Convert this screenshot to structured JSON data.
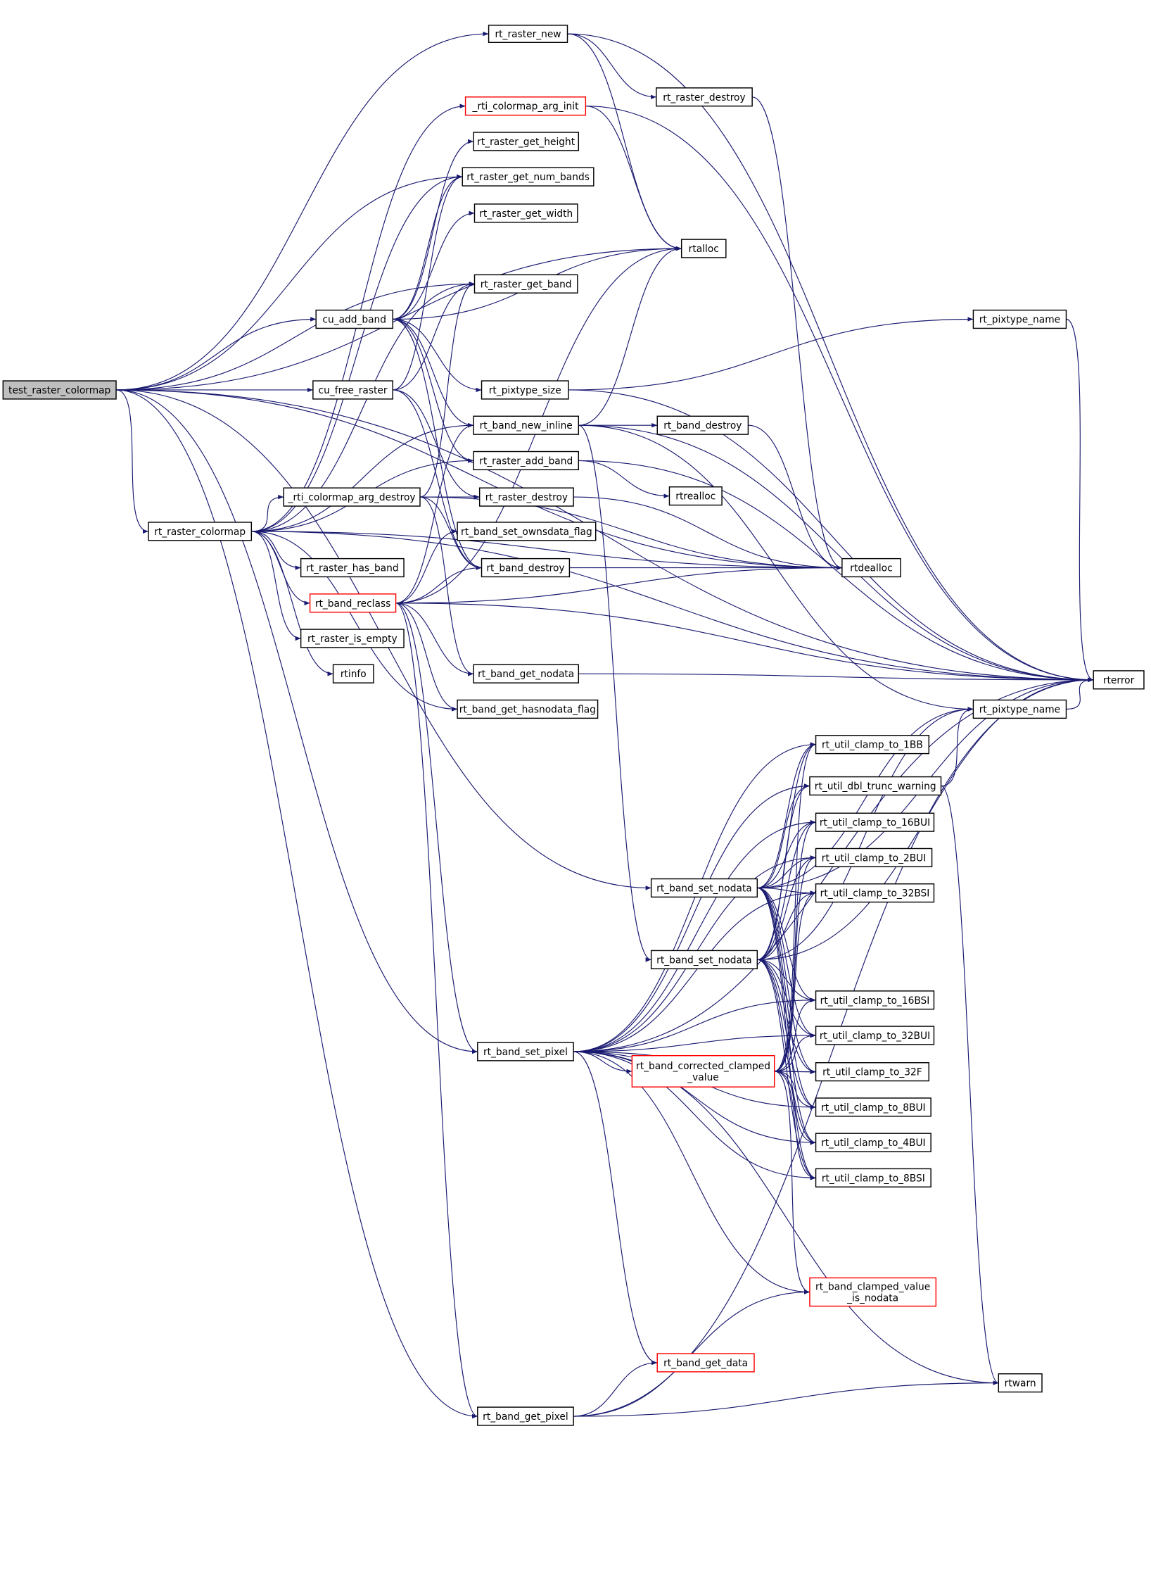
{
  "colors": {
    "edge": "#191970",
    "node_border": "#000000",
    "highlight_border": "#ff0000",
    "root_fill": "#bfbfbf"
  },
  "nodes": [
    {
      "id": "test_raster_colormap",
      "label": [
        "test_raster_colormap"
      ],
      "style": "root"
    },
    {
      "id": "rt_raster_new",
      "label": [
        "rt_raster_new"
      ]
    },
    {
      "id": "_rti_colormap_arg_init",
      "label": [
        "_rti_colormap_arg_init"
      ],
      "style": "red"
    },
    {
      "id": "rt_raster_get_height",
      "label": [
        "rt_raster_get_height"
      ]
    },
    {
      "id": "rt_raster_get_num_bands",
      "label": [
        "rt_raster_get_num_bands"
      ]
    },
    {
      "id": "rt_raster_get_width",
      "label": [
        "rt_raster_get_width"
      ]
    },
    {
      "id": "rt_raster_get_band",
      "label": [
        "rt_raster_get_band"
      ]
    },
    {
      "id": "rt_raster_destroy_a",
      "label": [
        "rt_raster_destroy"
      ]
    },
    {
      "id": "rtalloc",
      "label": [
        "rtalloc"
      ]
    },
    {
      "id": "rt_pixtype_name_a",
      "label": [
        "rt_pixtype_name"
      ]
    },
    {
      "id": "cu_add_band",
      "label": [
        "cu_add_band"
      ]
    },
    {
      "id": "cu_free_raster",
      "label": [
        "cu_free_raster"
      ]
    },
    {
      "id": "rt_pixtype_size",
      "label": [
        "rt_pixtype_size"
      ]
    },
    {
      "id": "rt_band_new_inline",
      "label": [
        "rt_band_new_inline"
      ]
    },
    {
      "id": "rt_band_destroy_a",
      "label": [
        "rt_band_destroy"
      ]
    },
    {
      "id": "rt_raster_add_band",
      "label": [
        "rt_raster_add_band"
      ]
    },
    {
      "id": "rtrealloc",
      "label": [
        "rtrealloc"
      ]
    },
    {
      "id": "_rti_colormap_arg_destroy",
      "label": [
        "_rti_colormap_arg_destroy"
      ]
    },
    {
      "id": "rt_raster_destroy_b",
      "label": [
        "rt_raster_destroy"
      ]
    },
    {
      "id": "rt_raster_colormap",
      "label": [
        "rt_raster_colormap"
      ]
    },
    {
      "id": "rt_band_set_ownsdata_flag",
      "label": [
        "rt_band_set_ownsdata_flag"
      ]
    },
    {
      "id": "rt_band_destroy_b",
      "label": [
        "rt_band_destroy"
      ]
    },
    {
      "id": "rtdealloc",
      "label": [
        "rtdealloc"
      ]
    },
    {
      "id": "rt_raster_has_band",
      "label": [
        "rt_raster_has_band"
      ]
    },
    {
      "id": "rt_band_reclass",
      "label": [
        "rt_band_reclass"
      ],
      "style": "red"
    },
    {
      "id": "rt_raster_is_empty",
      "label": [
        "rt_raster_is_empty"
      ]
    },
    {
      "id": "rtinfo",
      "label": [
        "rtinfo"
      ]
    },
    {
      "id": "rt_band_get_nodata",
      "label": [
        "rt_band_get_nodata"
      ]
    },
    {
      "id": "rt_band_get_hasnodata_flag",
      "label": [
        "rt_band_get_hasnodata_flag"
      ]
    },
    {
      "id": "rterror",
      "label": [
        "rterror"
      ]
    },
    {
      "id": "rt_pixtype_name_b",
      "label": [
        "rt_pixtype_name"
      ]
    },
    {
      "id": "rt_util_clamp_to_1BB",
      "label": [
        "rt_util_clamp_to_1BB"
      ]
    },
    {
      "id": "rt_util_dbl_trunc_warning",
      "label": [
        "rt_util_dbl_trunc_warning"
      ]
    },
    {
      "id": "rt_util_clamp_to_16BUI",
      "label": [
        "rt_util_clamp_to_16BUI"
      ]
    },
    {
      "id": "rt_util_clamp_to_2BUI",
      "label": [
        "rt_util_clamp_to_2BUI"
      ]
    },
    {
      "id": "rt_band_set_nodata_a",
      "label": [
        "rt_band_set_nodata"
      ]
    },
    {
      "id": "rt_util_clamp_to_32BSI",
      "label": [
        "rt_util_clamp_to_32BSI"
      ]
    },
    {
      "id": "rt_band_set_nodata_b",
      "label": [
        "rt_band_set_nodata"
      ]
    },
    {
      "id": "rt_util_clamp_to_16BSI",
      "label": [
        "rt_util_clamp_to_16BSI"
      ]
    },
    {
      "id": "rt_util_clamp_to_32BUI",
      "label": [
        "rt_util_clamp_to_32BUI"
      ]
    },
    {
      "id": "rt_band_set_pixel",
      "label": [
        "rt_band_set_pixel"
      ]
    },
    {
      "id": "rt_band_corrected_clamped_value",
      "label": [
        "rt_band_corrected_clamped",
        "_value"
      ],
      "style": "red"
    },
    {
      "id": "rt_util_clamp_to_32F",
      "label": [
        "rt_util_clamp_to_32F"
      ]
    },
    {
      "id": "rt_util_clamp_to_8BUI",
      "label": [
        "rt_util_clamp_to_8BUI"
      ]
    },
    {
      "id": "rt_util_clamp_to_4BUI",
      "label": [
        "rt_util_clamp_to_4BUI"
      ]
    },
    {
      "id": "rt_util_clamp_to_8BSI",
      "label": [
        "rt_util_clamp_to_8BSI"
      ]
    },
    {
      "id": "rt_band_clamped_value_is_nodata",
      "label": [
        "rt_band_clamped_value",
        "_is_nodata"
      ],
      "style": "red"
    },
    {
      "id": "rt_band_get_data",
      "label": [
        "rt_band_get_data"
      ],
      "style": "red"
    },
    {
      "id": "rtwarn",
      "label": [
        "rtwarn"
      ]
    },
    {
      "id": "rt_band_get_pixel",
      "label": [
        "rt_band_get_pixel"
      ]
    }
  ],
  "edges": [
    [
      "test_raster_colormap",
      "rt_raster_new"
    ],
    [
      "test_raster_colormap",
      "rtalloc"
    ],
    [
      "test_raster_colormap",
      "rt_raster_get_num_bands"
    ],
    [
      "test_raster_colormap",
      "rt_raster_get_band"
    ],
    [
      "test_raster_colormap",
      "cu_add_band"
    ],
    [
      "test_raster_colormap",
      "cu_free_raster"
    ],
    [
      "test_raster_colormap",
      "rt_raster_colormap"
    ],
    [
      "test_raster_colormap",
      "rtdealloc"
    ],
    [
      "test_raster_colormap",
      "rt_band_set_nodata_a"
    ],
    [
      "test_raster_colormap",
      "rt_band_set_pixel"
    ],
    [
      "test_raster_colormap",
      "rt_band_get_pixel"
    ],
    [
      "test_raster_colormap",
      "rterror"
    ],
    [
      "rt_raster_new",
      "rtalloc"
    ],
    [
      "rt_raster_new",
      "rt_raster_destroy_a"
    ],
    [
      "rt_raster_new",
      "rterror"
    ],
    [
      "rt_raster_destroy_a",
      "rtdealloc"
    ],
    [
      "_rti_colormap_arg_init",
      "rtalloc"
    ],
    [
      "_rti_colormap_arg_init",
      "rterror"
    ],
    [
      "cu_add_band",
      "rt_raster_get_height"
    ],
    [
      "cu_add_band",
      "rt_raster_get_num_bands"
    ],
    [
      "cu_add_band",
      "rt_raster_get_width"
    ],
    [
      "cu_add_band",
      "rt_pixtype_size"
    ],
    [
      "cu_add_band",
      "rt_band_new_inline"
    ],
    [
      "cu_add_band",
      "rt_raster_add_band"
    ],
    [
      "cu_add_band",
      "rt_band_destroy_b"
    ],
    [
      "cu_add_band",
      "rtalloc"
    ],
    [
      "cu_free_raster",
      "rt_raster_get_num_bands"
    ],
    [
      "cu_free_raster",
      "rt_raster_get_band"
    ],
    [
      "cu_free_raster",
      "rt_band_destroy_b"
    ],
    [
      "cu_free_raster",
      "rt_raster_destroy_b"
    ],
    [
      "rt_pixtype_size",
      "rterror"
    ],
    [
      "rt_pixtype_size",
      "rt_pixtype_name_a"
    ],
    [
      "rt_pixtype_name_a",
      "rterror"
    ],
    [
      "rt_band_new_inline",
      "rtalloc"
    ],
    [
      "rt_band_new_inline",
      "rt_band_destroy_a"
    ],
    [
      "rt_band_new_inline",
      "rterror"
    ],
    [
      "rt_band_new_inline",
      "rt_pixtype_name_b"
    ],
    [
      "rt_band_new_inline",
      "rt_band_set_nodata_b"
    ],
    [
      "rt_band_destroy_a",
      "rtdealloc"
    ],
    [
      "rt_raster_add_band",
      "rtrealloc"
    ],
    [
      "rt_raster_add_band",
      "rterror"
    ],
    [
      "rt_raster_destroy_b",
      "rtdealloc"
    ],
    [
      "rt_raster_colormap",
      "_rti_colormap_arg_init"
    ],
    [
      "rt_raster_colormap",
      "rt_raster_get_num_bands"
    ],
    [
      "rt_raster_colormap",
      "rt_raster_get_band"
    ],
    [
      "rt_raster_colormap",
      "rt_raster_add_band"
    ],
    [
      "rt_raster_colormap",
      "_rti_colormap_arg_destroy"
    ],
    [
      "rt_raster_colormap",
      "rt_raster_has_band"
    ],
    [
      "rt_raster_colormap",
      "rt_band_reclass"
    ],
    [
      "rt_raster_colormap",
      "rt_raster_is_empty"
    ],
    [
      "rt_raster_colormap",
      "rtinfo"
    ],
    [
      "rt_raster_colormap",
      "rt_band_get_hasnodata_flag"
    ],
    [
      "rt_raster_colormap",
      "rtdealloc"
    ],
    [
      "rt_raster_colormap",
      "rt_band_new_inline"
    ],
    [
      "rt_raster_colormap",
      "rterror"
    ],
    [
      "_rti_colormap_arg_destroy",
      "rt_raster_destroy_b"
    ],
    [
      "_rti_colormap_arg_destroy",
      "rtdealloc"
    ],
    [
      "_rti_colormap_arg_destroy",
      "rt_band_get_nodata"
    ],
    [
      "_rti_colormap_arg_destroy",
      "rt_raster_get_band"
    ],
    [
      "_rti_colormap_arg_destroy",
      "rt_band_destroy_b"
    ],
    [
      "rt_band_reclass",
      "rt_band_new_inline"
    ],
    [
      "rt_band_reclass",
      "rt_band_set_ownsdata_flag"
    ],
    [
      "rt_band_reclass",
      "rt_band_destroy_b"
    ],
    [
      "rt_band_reclass",
      "rtdealloc"
    ],
    [
      "rt_band_reclass",
      "rt_band_get_nodata"
    ],
    [
      "rt_band_reclass",
      "rt_band_get_hasnodata_flag"
    ],
    [
      "rt_band_reclass",
      "rt_band_set_pixel"
    ],
    [
      "rt_band_reclass",
      "rt_band_get_pixel"
    ],
    [
      "rt_band_reclass",
      "rterror"
    ],
    [
      "rt_band_reclass",
      "rtalloc"
    ],
    [
      "rt_band_destroy_b",
      "rtdealloc"
    ],
    [
      "rt_band_get_nodata",
      "rterror"
    ],
    [
      "rt_pixtype_name_b",
      "rterror"
    ],
    [
      "rt_util_dbl_trunc_warning",
      "rt_pixtype_name_b"
    ],
    [
      "rt_util_dbl_trunc_warning",
      "rtwarn"
    ],
    [
      "rt_band_set_nodata_a",
      "rt_util_clamp_to_1BB"
    ],
    [
      "rt_band_set_nodata_a",
      "rt_util_dbl_trunc_warning"
    ],
    [
      "rt_band_set_nodata_a",
      "rt_util_clamp_to_16BUI"
    ],
    [
      "rt_band_set_nodata_a",
      "rt_util_clamp_to_2BUI"
    ],
    [
      "rt_band_set_nodata_a",
      "rt_util_clamp_to_32BSI"
    ],
    [
      "rt_band_set_nodata_a",
      "rt_util_clamp_to_16BSI"
    ],
    [
      "rt_band_set_nodata_a",
      "rt_util_clamp_to_32BUI"
    ],
    [
      "rt_band_set_nodata_a",
      "rt_util_clamp_to_32F"
    ],
    [
      "rt_band_set_nodata_a",
      "rt_util_clamp_to_8BUI"
    ],
    [
      "rt_band_set_nodata_a",
      "rt_util_clamp_to_4BUI"
    ],
    [
      "rt_band_set_nodata_a",
      "rt_util_clamp_to_8BSI"
    ],
    [
      "rt_band_set_nodata_a",
      "rterror"
    ],
    [
      "rt_band_set_nodata_a",
      "rt_pixtype_name_b"
    ],
    [
      "rt_band_set_nodata_b",
      "rt_util_clamp_to_1BB"
    ],
    [
      "rt_band_set_nodata_b",
      "rt_util_dbl_trunc_warning"
    ],
    [
      "rt_band_set_nodata_b",
      "rt_util_clamp_to_16BUI"
    ],
    [
      "rt_band_set_nodata_b",
      "rt_util_clamp_to_2BUI"
    ],
    [
      "rt_band_set_nodata_b",
      "rt_util_clamp_to_32BSI"
    ],
    [
      "rt_band_set_nodata_b",
      "rt_util_clamp_to_16BSI"
    ],
    [
      "rt_band_set_nodata_b",
      "rt_util_clamp_to_32BUI"
    ],
    [
      "rt_band_set_nodata_b",
      "rt_util_clamp_to_32F"
    ],
    [
      "rt_band_set_nodata_b",
      "rt_util_clamp_to_8BUI"
    ],
    [
      "rt_band_set_nodata_b",
      "rt_util_clamp_to_4BUI"
    ],
    [
      "rt_band_set_nodata_b",
      "rt_util_clamp_to_8BSI"
    ],
    [
      "rt_band_set_nodata_b",
      "rterror"
    ],
    [
      "rt_band_set_nodata_b",
      "rt_pixtype_name_b"
    ],
    [
      "rt_band_set_pixel",
      "rt_util_clamp_to_1BB"
    ],
    [
      "rt_band_set_pixel",
      "rt_util_dbl_trunc_warning"
    ],
    [
      "rt_band_set_pixel",
      "rt_util_clamp_to_16BUI"
    ],
    [
      "rt_band_set_pixel",
      "rt_util_clamp_to_2BUI"
    ],
    [
      "rt_band_set_pixel",
      "rt_util_clamp_to_32BSI"
    ],
    [
      "rt_band_set_pixel",
      "rt_util_clamp_to_16BSI"
    ],
    [
      "rt_band_set_pixel",
      "rt_util_clamp_to_32BUI"
    ],
    [
      "rt_band_set_pixel",
      "rt_util_clamp_to_32F"
    ],
    [
      "rt_band_set_pixel",
      "rt_util_clamp_to_8BUI"
    ],
    [
      "rt_band_set_pixel",
      "rt_util_clamp_to_4BUI"
    ],
    [
      "rt_band_set_pixel",
      "rt_util_clamp_to_8BSI"
    ],
    [
      "rt_band_set_pixel",
      "rt_band_corrected_clamped_value"
    ],
    [
      "rt_band_set_pixel",
      "rt_band_clamped_value_is_nodata"
    ],
    [
      "rt_band_set_pixel",
      "rt_band_get_data"
    ],
    [
      "rt_band_set_pixel",
      "rtwarn"
    ],
    [
      "rt_band_set_pixel",
      "rterror"
    ],
    [
      "rt_band_corrected_clamped_value",
      "rt_util_clamp_to_1BB"
    ],
    [
      "rt_band_corrected_clamped_value",
      "rt_util_clamp_to_16BUI"
    ],
    [
      "rt_band_corrected_clamped_value",
      "rt_util_clamp_to_2BUI"
    ],
    [
      "rt_band_corrected_clamped_value",
      "rt_util_clamp_to_32BSI"
    ],
    [
      "rt_band_corrected_clamped_value",
      "rt_util_clamp_to_16BSI"
    ],
    [
      "rt_band_corrected_clamped_value",
      "rt_util_clamp_to_32BUI"
    ],
    [
      "rt_band_corrected_clamped_value",
      "rt_util_clamp_to_32F"
    ],
    [
      "rt_band_corrected_clamped_value",
      "rt_util_clamp_to_8BUI"
    ],
    [
      "rt_band_corrected_clamped_value",
      "rt_util_clamp_to_4BUI"
    ],
    [
      "rt_band_corrected_clamped_value",
      "rt_util_clamp_to_8BSI"
    ],
    [
      "rt_band_corrected_clamped_value",
      "rt_band_clamped_value_is_nodata"
    ],
    [
      "rt_band_get_pixel",
      "rt_band_get_data"
    ],
    [
      "rt_band_get_pixel",
      "rt_band_clamped_value_is_nodata"
    ],
    [
      "rt_band_get_pixel",
      "rtwarn"
    ],
    [
      "rt_band_get_pixel",
      "rterror"
    ]
  ]
}
